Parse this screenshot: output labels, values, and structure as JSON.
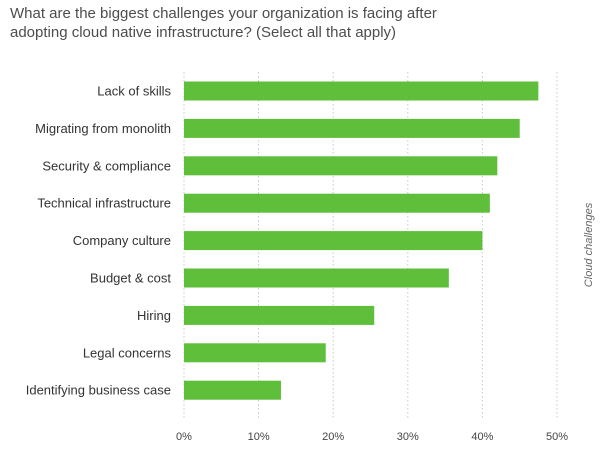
{
  "chart_data": {
    "type": "bar",
    "orientation": "horizontal",
    "title": "What are the biggest challenges your organization is facing after adopting cloud native infrastructure? (Select all that apply)",
    "ylabel": "Cloud challenges",
    "xlabel": "",
    "categories": [
      "Lack of skills",
      "Migrating from monolith",
      "Security & compliance",
      "Technical infrastructure",
      "Company culture",
      "Budget & cost",
      "Hiring",
      "Legal concerns",
      "Identifying business case"
    ],
    "values": [
      47.5,
      45,
      42,
      41,
      40,
      35.5,
      25.5,
      19,
      13
    ],
    "xlim": [
      0,
      50
    ],
    "xticks": [
      0,
      10,
      20,
      30,
      40,
      50
    ],
    "xtick_labels": [
      "0%",
      "10%",
      "20%",
      "30%",
      "40%",
      "50%"
    ],
    "bar_color": "#5fbf3a",
    "grid": "vertical",
    "legend": "none"
  }
}
